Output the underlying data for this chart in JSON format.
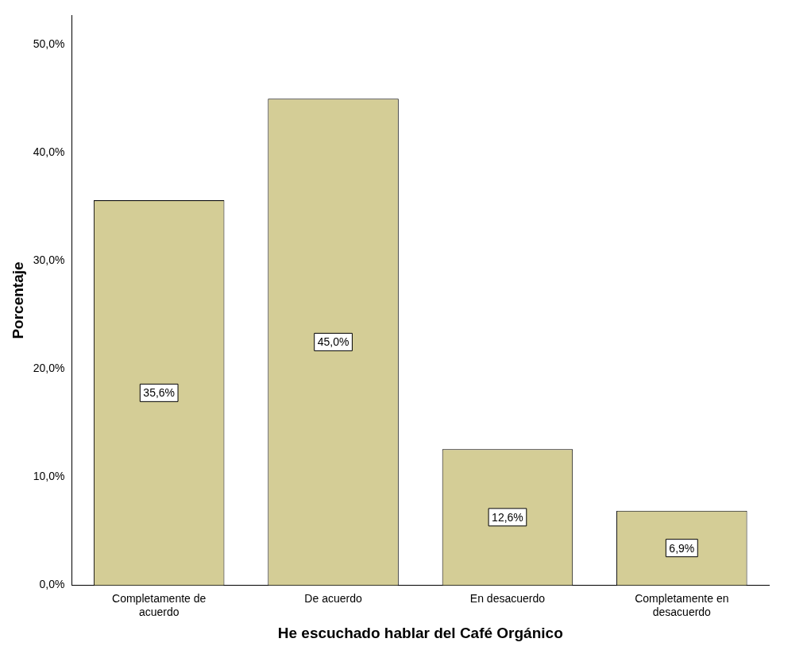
{
  "chart_data": {
    "type": "bar",
    "xlabel": "He escuchado hablar del Café Orgánico",
    "ylabel": "Porcentaje",
    "categories": [
      "Completamente de acuerdo",
      "De acuerdo",
      "En desacuerdo",
      "Completamente en desacuerdo"
    ],
    "values": [
      35.6,
      45.0,
      12.6,
      6.9
    ],
    "value_labels": [
      "35,6%",
      "45,0%",
      "12,6%",
      "6,9%"
    ],
    "color": "#d4cd96",
    "ylim": [
      0,
      52.7
    ],
    "yticks": [
      {
        "value": 0,
        "label": "0,0%"
      },
      {
        "value": 10,
        "label": "10,0%"
      },
      {
        "value": 20,
        "label": "20,0%"
      },
      {
        "value": 30,
        "label": "30,0%"
      },
      {
        "value": 40,
        "label": "40,0%"
      },
      {
        "value": 50,
        "label": "50,0%"
      }
    ],
    "grid": false,
    "legend": false
  }
}
